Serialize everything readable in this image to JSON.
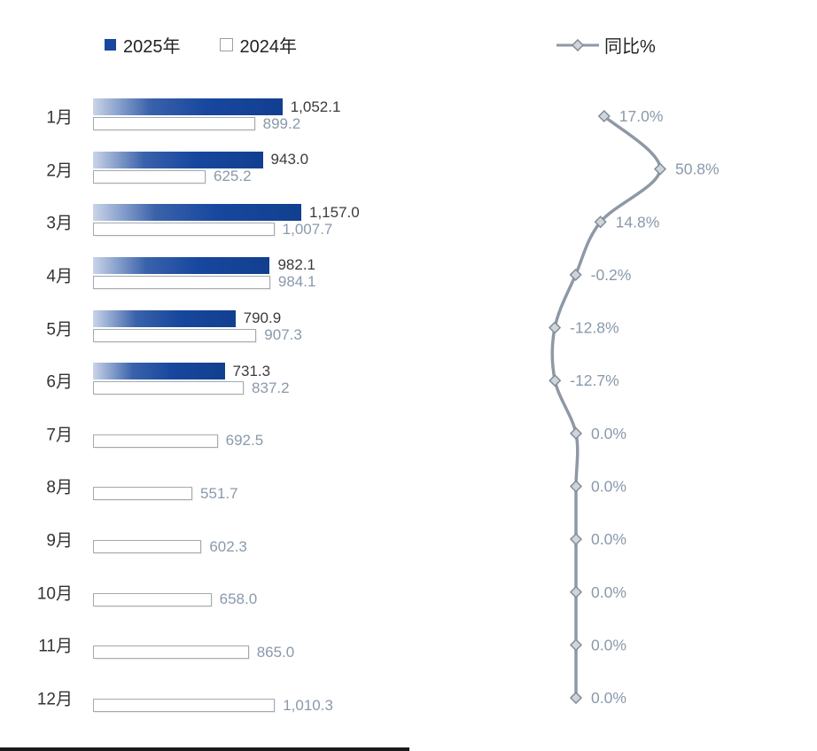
{
  "legend": {
    "series_2025": "2025年",
    "series_2024": "2024年",
    "yoy": "同比%"
  },
  "colors": {
    "blue": "#17479e",
    "bar2024_border": "#a3a9af",
    "value2025_label": "#3b3b3b",
    "value2024_label": "#8a99ab",
    "yoy_line": "#8e99a5",
    "yoy_marker_fill": "#cfd5db",
    "yoy_marker_stroke": "#828d99",
    "yoy_label": "#8a99ab",
    "month_label": "#333333"
  },
  "chart_data": {
    "type": "bar",
    "orientation": "horizontal",
    "title": "",
    "xlabel": "",
    "ylabel": "",
    "legend_position": "top",
    "grid": false,
    "categories": [
      "1月",
      "2月",
      "3月",
      "4月",
      "5月",
      "6月",
      "7月",
      "8月",
      "9月",
      "10月",
      "11月",
      "12月"
    ],
    "series": [
      {
        "name": "2025年",
        "values": [
          1052.1,
          943.0,
          1157.0,
          982.1,
          790.9,
          731.3,
          null,
          null,
          null,
          null,
          null,
          null
        ],
        "labels": [
          "1,052.1",
          "943.0",
          "1,157.0",
          "982.1",
          "790.9",
          "731.3",
          null,
          null,
          null,
          null,
          null,
          null
        ]
      },
      {
        "name": "2024年",
        "values": [
          899.2,
          625.2,
          1007.7,
          984.1,
          907.3,
          837.2,
          692.5,
          551.7,
          602.3,
          658.0,
          865.0,
          1010.3
        ],
        "labels": [
          "899.2",
          "625.2",
          "1,007.7",
          "984.1",
          "907.3",
          "837.2",
          "692.5",
          "551.7",
          "602.3",
          "658.0",
          "865.0",
          "1,010.3"
        ]
      }
    ],
    "line_series": {
      "name": "同比%",
      "values": [
        17.0,
        50.8,
        14.8,
        -0.2,
        -12.8,
        -12.7,
        0.0,
        0.0,
        0.0,
        0.0,
        0.0,
        0.0
      ],
      "labels": [
        "17.0%",
        "50.8%",
        "14.8%",
        "-0.2%",
        "-12.8%",
        "-12.7%",
        "0.0%",
        "0.0%",
        "0.0%",
        "0.0%",
        "0.0%",
        "0.0%"
      ]
    },
    "value_axis_max": 1157.0
  }
}
